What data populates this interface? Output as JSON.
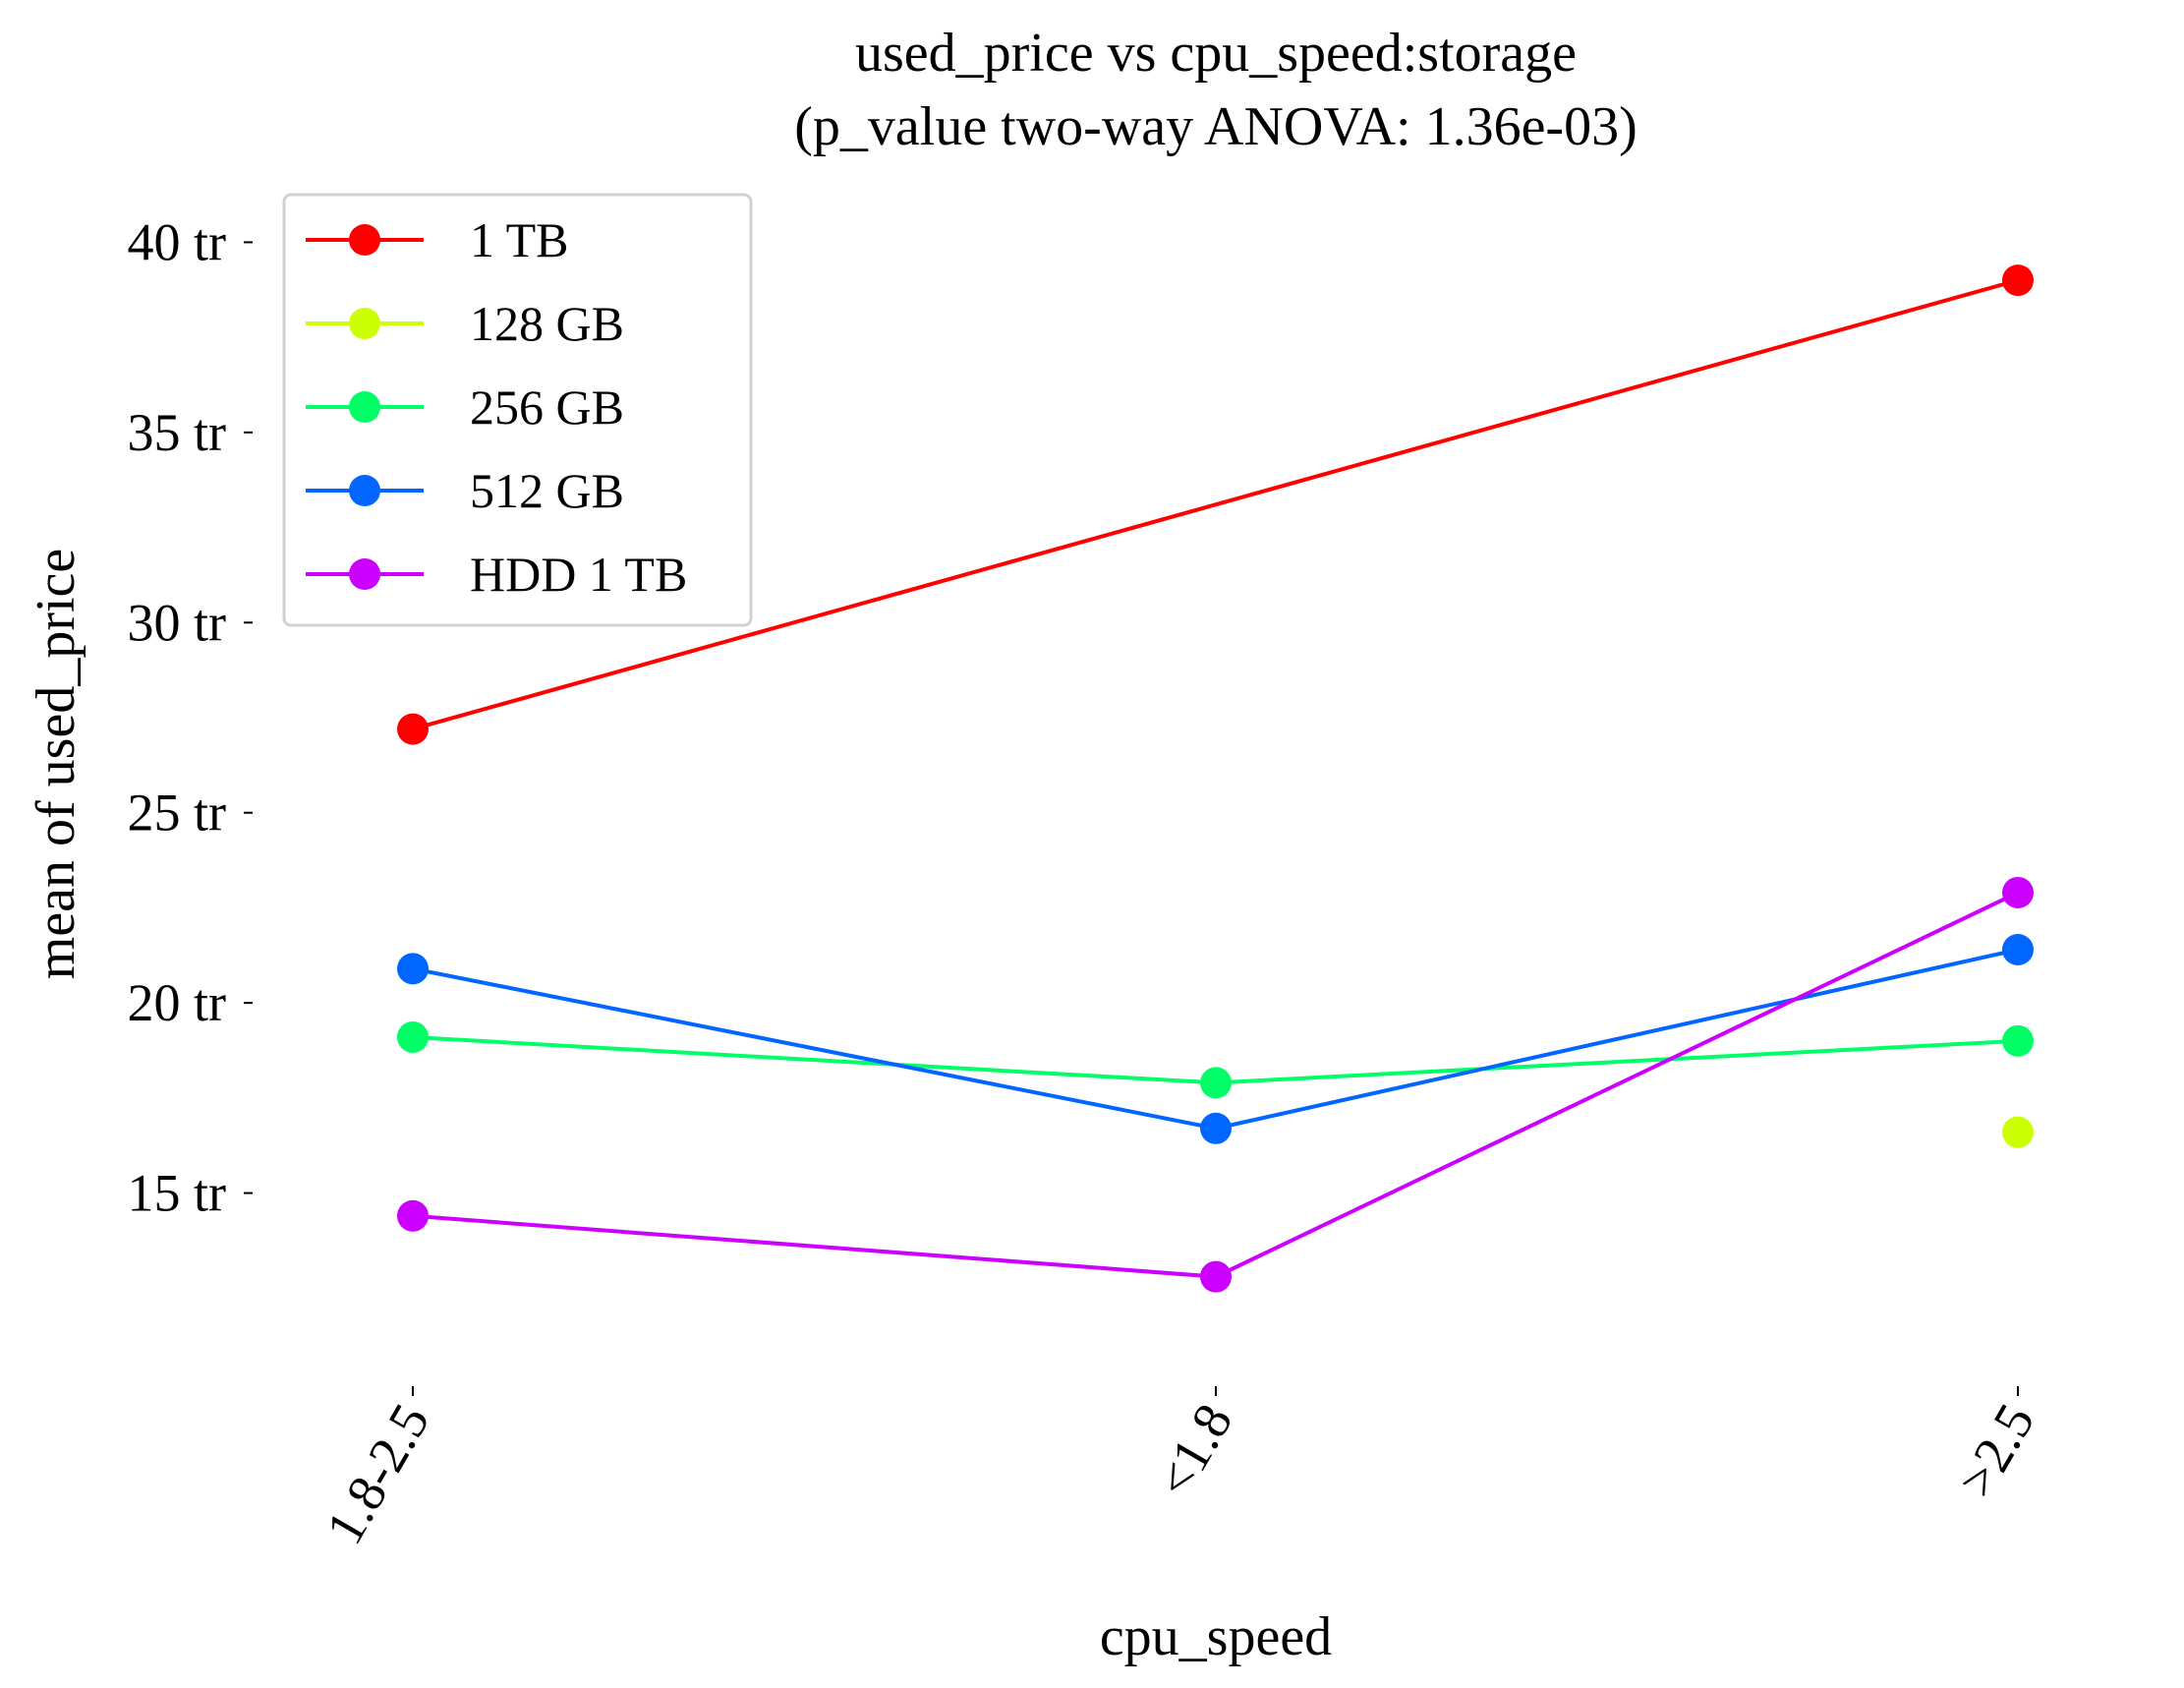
{
  "chart_data": {
    "type": "line",
    "title": "used_price vs cpu_speed:storage",
    "subtitle": "(p_value two-way ANOVA: 1.36e-03)",
    "xlabel": "cpu_speed",
    "ylabel": "mean of used_price",
    "categories": [
      "1.8-2.5",
      "<1.8",
      ">2.5"
    ],
    "ylim": [
      10.0,
      41.2
    ],
    "y_ticks": [
      {
        "value": 15,
        "label": "15 tr"
      },
      {
        "value": 20,
        "label": "20 tr"
      },
      {
        "value": 25,
        "label": "25 tr"
      },
      {
        "value": 30,
        "label": "30 tr"
      },
      {
        "value": 35,
        "label": "35 tr"
      },
      {
        "value": 40,
        "label": "40 tr"
      }
    ],
    "grid": false,
    "legend_position": "top-left",
    "series": [
      {
        "name": "1 TB",
        "color": "#ff0000",
        "values": [
          27.2,
          null,
          39.0
        ]
      },
      {
        "name": "128 GB",
        "color": "#ccff00",
        "values": [
          null,
          null,
          16.6
        ]
      },
      {
        "name": "256 GB",
        "color": "#00ff66",
        "values": [
          19.1,
          17.9,
          19.0
        ]
      },
      {
        "name": "512 GB",
        "color": "#0066ff",
        "values": [
          20.9,
          16.7,
          21.4
        ]
      },
      {
        "name": "HDD 1 TB",
        "color": "#cc00ff",
        "values": [
          14.4,
          12.8,
          22.9
        ]
      }
    ]
  }
}
